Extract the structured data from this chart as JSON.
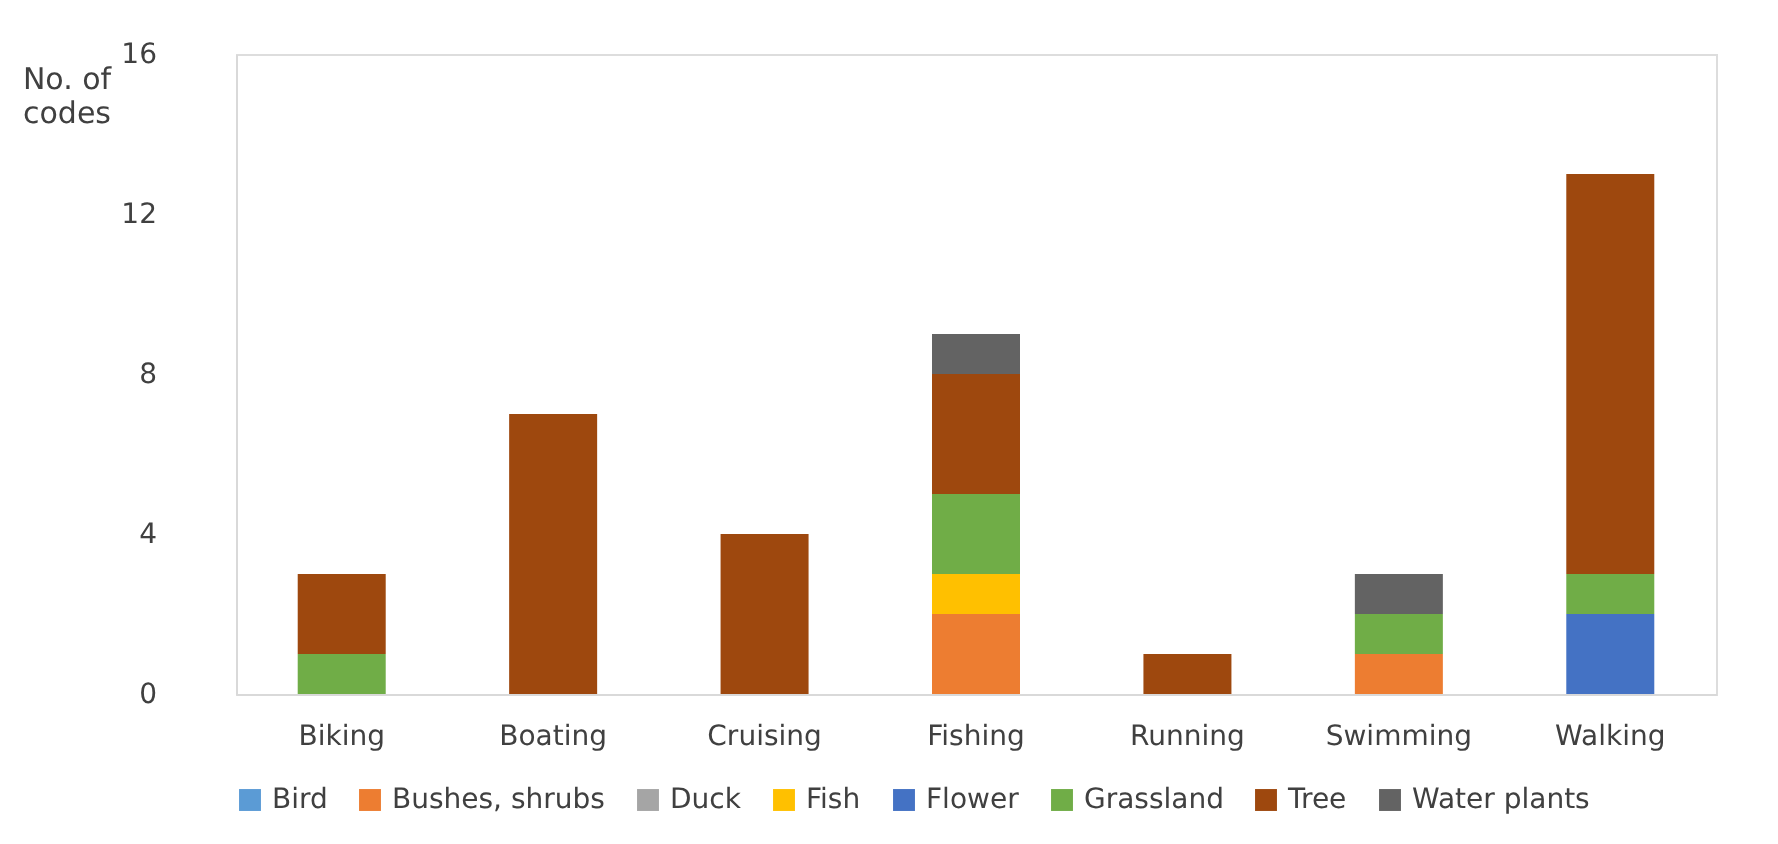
{
  "chart_data": {
    "type": "bar",
    "stacked": true,
    "ylabel": "No. of codes",
    "categories": [
      "Biking",
      "Boating",
      "Cruising",
      "Fishing",
      "Running",
      "Swimming",
      "Walking"
    ],
    "series": [
      {
        "name": "Bird",
        "color": "#5b9bd5",
        "values": [
          null,
          null,
          null,
          null,
          null,
          null,
          null
        ]
      },
      {
        "name": "Bushes, shrubs",
        "color": "#ed7d31",
        "values": [
          null,
          null,
          null,
          2,
          null,
          1,
          null
        ]
      },
      {
        "name": "Duck",
        "color": "#a5a5a5",
        "values": [
          null,
          null,
          null,
          null,
          null,
          null,
          null
        ]
      },
      {
        "name": "Fish",
        "color": "#ffc000",
        "values": [
          null,
          null,
          null,
          1,
          null,
          null,
          null
        ]
      },
      {
        "name": "Flower",
        "color": "#4472c4",
        "values": [
          null,
          null,
          null,
          null,
          null,
          null,
          2
        ]
      },
      {
        "name": "Grassland",
        "color": "#70ad47",
        "values": [
          1,
          null,
          null,
          2,
          null,
          1,
          1
        ]
      },
      {
        "name": "Tree",
        "color": "#9e480e",
        "values": [
          2,
          7,
          4,
          3,
          1,
          null,
          10
        ]
      },
      {
        "name": "Water plants",
        "color": "#636363",
        "values": [
          null,
          null,
          null,
          1,
          null,
          1,
          null
        ]
      }
    ],
    "ylim": [
      0,
      16
    ],
    "yticks": [
      0,
      4,
      8,
      12,
      16
    ],
    "grid": false,
    "legend": "bottom"
  }
}
